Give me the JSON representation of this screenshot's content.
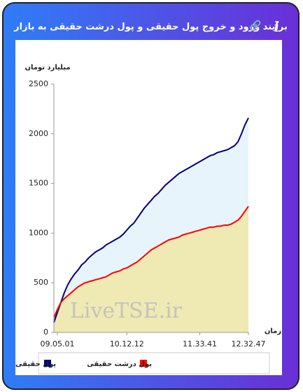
{
  "chart_data": {
    "type": "area",
    "title": "برآیند ورود و خروج پول حقیقی و پول درشت حقیقی به بازار",
    "y_label": "میلیارد تومان",
    "x_label": "زمان",
    "watermark": "LiveTSE.ir",
    "categories": [
      null,
      "09.05.01",
      null,
      null,
      null,
      null,
      null,
      null,
      null,
      null,
      null,
      null,
      null,
      null,
      null,
      null,
      null,
      null,
      null,
      null,
      null,
      "10.12.12",
      null,
      null,
      null,
      null,
      null,
      null,
      null,
      null,
      null,
      null,
      null,
      null,
      null,
      null,
      null,
      null,
      null,
      null,
      null,
      null,
      "11.33.41",
      null,
      null,
      null,
      null,
      null,
      null,
      null,
      null,
      null,
      null,
      null,
      null,
      null,
      "12.32.47"
    ],
    "series": [
      {
        "name": "پول حقیقی",
        "color": "#000080",
        "fill": "#e8f4fb",
        "values": [
          100,
          200,
          300,
          400,
          480,
          540,
          590,
          630,
          680,
          710,
          750,
          780,
          810,
          830,
          850,
          880,
          900,
          920,
          940,
          960,
          990,
          1030,
          1070,
          1100,
          1150,
          1200,
          1250,
          1290,
          1330,
          1370,
          1400,
          1440,
          1480,
          1510,
          1540,
          1570,
          1600,
          1620,
          1640,
          1660,
          1680,
          1700,
          1720,
          1740,
          1760,
          1780,
          1790,
          1810,
          1820,
          1830,
          1840,
          1860,
          1880,
          1920,
          2000,
          2090,
          2160
        ]
      },
      {
        "name": "پول درشت حقیقی",
        "color": "#ff0000",
        "fill": "#efe9b4",
        "values": [
          150,
          230,
          300,
          340,
          370,
          400,
          430,
          460,
          480,
          500,
          510,
          520,
          530,
          540,
          550,
          560,
          580,
          600,
          610,
          620,
          640,
          650,
          670,
          690,
          710,
          740,
          770,
          800,
          830,
          850,
          870,
          890,
          910,
          930,
          940,
          950,
          960,
          980,
          990,
          1000,
          1010,
          1020,
          1030,
          1040,
          1050,
          1060,
          1060,
          1070,
          1070,
          1080,
          1080,
          1090,
          1110,
          1130,
          1170,
          1220,
          1270
        ]
      }
    ],
    "ylim": [
      0,
      2500
    ],
    "yticks": [
      0,
      500,
      1000,
      1500,
      2000,
      2500
    ],
    "grid": false,
    "legend": "bottom"
  }
}
